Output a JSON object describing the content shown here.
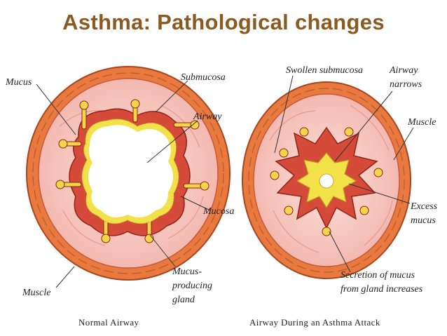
{
  "title": "Asthma: Pathological changes",
  "colors": {
    "title": "#8a5a22",
    "muscle": "#e8793f",
    "submucosa": "#f7c9c0",
    "mucosa": "#d64a3a",
    "gland": "#f2d648",
    "mucus": "#f3e14a"
  },
  "normal": {
    "caption": "Normal Airway",
    "labels": {
      "mucus": "Mucus",
      "submucosa": "Submucosa",
      "airway": "Airway",
      "mucosa": "Mucosa",
      "gland_1": "Mucus-",
      "gland_2": "producing",
      "gland_3": "gland",
      "muscle": "Muscle"
    }
  },
  "asthma": {
    "caption": "Airway During an Asthma Attack",
    "labels": {
      "swollen": "Swollen submucosa",
      "narrows_1": "Airway",
      "narrows_2": "narrows",
      "muscle": "Muscle",
      "excess_1": "Excess",
      "excess_2": "mucus",
      "secretion_1": "Secretion of mucus",
      "secretion_2": "from gland increases"
    }
  }
}
